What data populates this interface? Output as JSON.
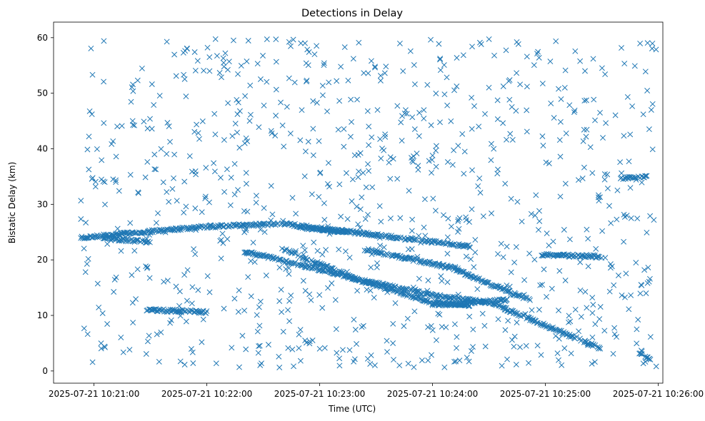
{
  "chart_data": {
    "type": "scatter",
    "title": "Detections in Delay",
    "xlabel": "Time (UTC)",
    "ylabel": "Bistatic Delay (km)",
    "x_tick_labels": [
      "2025-07-21 10:21:00",
      "2025-07-21 10:22:00",
      "2025-07-21 10:23:00",
      "2025-07-21 10:24:00",
      "2025-07-21 10:25:00",
      "2025-07-21 10:26:00"
    ],
    "x_ticks_seconds_after_1020": [
      60,
      120,
      180,
      240,
      300,
      360
    ],
    "x_range_seconds_after_1020": [
      38.5,
      362.5
    ],
    "y_ticks": [
      0,
      10,
      20,
      30,
      40,
      50,
      60
    ],
    "ylim": [
      -2.2,
      62.8
    ],
    "marker": "x",
    "color": "#1f77b4",
    "grid": false,
    "legend": "none",
    "time_span": [
      "2025-07-21 10:20:53",
      "2025-07-21 10:25:59"
    ],
    "tracks": [
      {
        "x": [
          53,
          120,
          160,
          232,
          260
        ],
        "y": [
          24.0,
          26.0,
          26.5,
          23.6,
          22.4
        ]
      },
      {
        "x": [
          160,
          200,
          242,
          270,
          330
        ],
        "y": [
          22.0,
          16.5,
          13.5,
          12.4,
          4.0
        ]
      },
      {
        "x": [
          140,
          165,
          200,
          240,
          260
        ],
        "y": [
          21.5,
          19.5,
          16.5,
          12.3,
          11.8
        ]
      },
      {
        "x": [
          205,
          250,
          272,
          292
        ],
        "y": [
          21.8,
          18.6,
          15.4,
          12.8
        ]
      },
      {
        "x": [
          240,
          255,
          265,
          280
        ],
        "y": [
          12.0,
          12.0,
          12.4,
          12.8
        ]
      },
      {
        "x": [
          88,
          120
        ],
        "y": [
          11.0,
          10.6
        ]
      },
      {
        "x": [
          170,
          195
        ],
        "y": [
          25.8,
          25.0
        ]
      },
      {
        "x": [
          298,
          330
        ],
        "y": [
          20.9,
          20.6
        ]
      },
      {
        "x": [
          65,
          90
        ],
        "y": [
          23.8,
          23.3
        ]
      },
      {
        "x": [
          340,
          354
        ],
        "y": [
          34.6,
          35.0
        ]
      },
      {
        "x": [
          350,
          357
        ],
        "y": [
          3.0,
          2.1
        ]
      }
    ]
  }
}
